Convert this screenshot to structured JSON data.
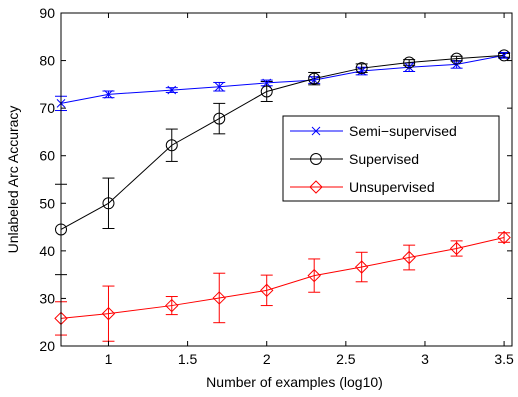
{
  "chart_data": {
    "type": "line",
    "title": "",
    "xlabel": "Number of examples (log10)",
    "ylabel": "Unlabeled Arc Accuracy",
    "xlim": [
      0.7,
      3.55
    ],
    "ylim": [
      20,
      90
    ],
    "xticks": [
      1,
      1.5,
      2,
      2.5,
      3,
      3.5
    ],
    "xtick_labels": [
      "1",
      "1.5",
      "2",
      "2.5",
      "3",
      "3.5"
    ],
    "yticks": [
      20,
      30,
      40,
      50,
      60,
      70,
      80,
      90
    ],
    "ytick_labels": [
      "20",
      "30",
      "40",
      "50",
      "60",
      "70",
      "80",
      "90"
    ],
    "grid": false,
    "legend_position": "center-right",
    "x": [
      0.7,
      1.0,
      1.4,
      1.7,
      2.0,
      2.3,
      2.6,
      2.9,
      3.2,
      3.5
    ],
    "series": [
      {
        "name": "Semi−supervised",
        "color": "#0000ff",
        "marker": "x",
        "values": [
          71.0,
          72.9,
          73.8,
          74.5,
          75.3,
          75.9,
          77.8,
          78.6,
          79.2,
          81.1
        ],
        "errors": [
          1.5,
          0.7,
          0.5,
          0.9,
          0.6,
          0.7,
          0.8,
          0.9,
          0.8,
          0.6
        ]
      },
      {
        "name": "Supervised",
        "color": "#000000",
        "marker": "circle",
        "values": [
          44.5,
          50.0,
          62.2,
          67.8,
          73.5,
          76.2,
          78.4,
          79.6,
          80.4,
          81.1
        ],
        "errors": [
          9.5,
          5.3,
          3.4,
          3.2,
          2.1,
          1.3,
          0.9,
          0.6,
          0.5,
          0.4
        ]
      },
      {
        "name": "Unsupervised",
        "color": "#ff0000",
        "marker": "diamond",
        "values": [
          25.8,
          26.8,
          28.5,
          30.1,
          31.7,
          34.8,
          36.6,
          38.6,
          40.5,
          42.8
        ],
        "errors": [
          3.5,
          5.8,
          1.9,
          5.2,
          3.2,
          3.5,
          3.1,
          2.6,
          1.6,
          1.0
        ]
      }
    ]
  }
}
